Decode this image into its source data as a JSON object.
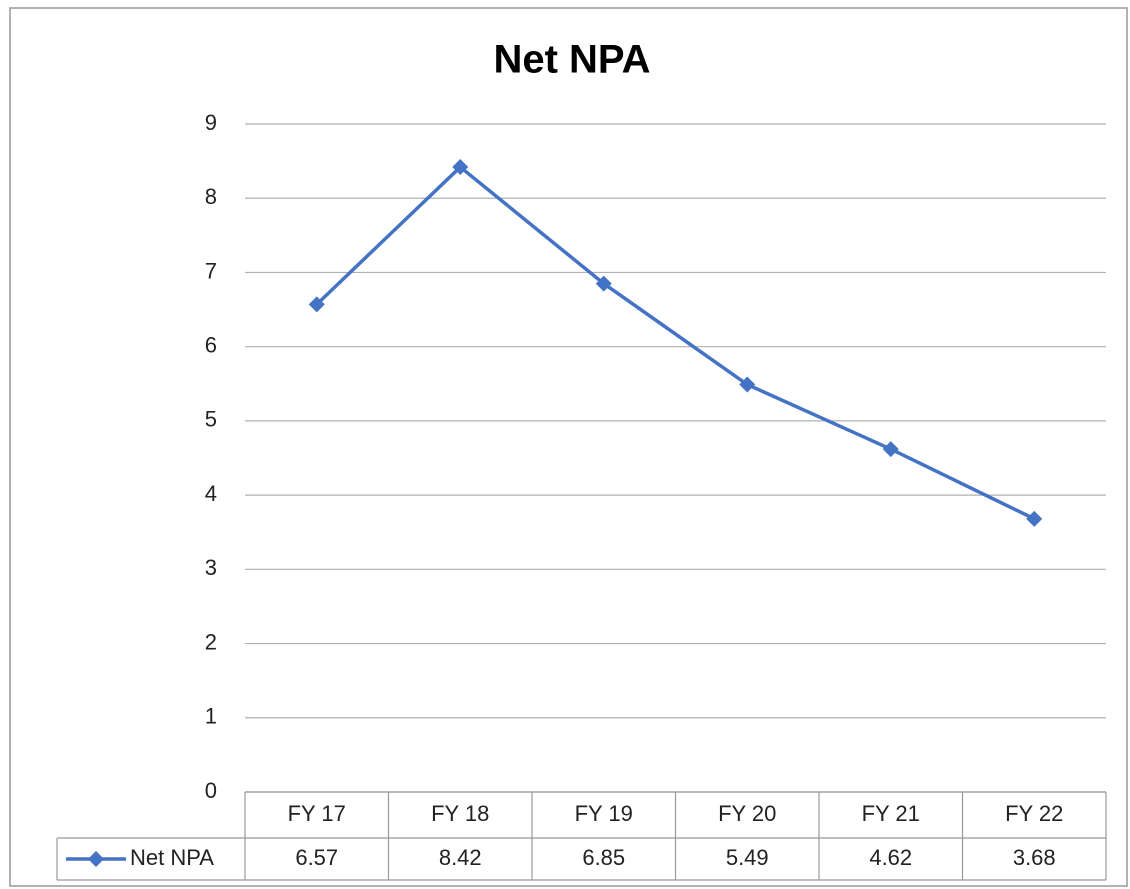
{
  "chart_data": {
    "type": "line",
    "title": "Net NPA",
    "categories": [
      "FY 17",
      "FY 18",
      "FY 19",
      "FY 20",
      "FY 21",
      "FY 22"
    ],
    "series": [
      {
        "name": "Net NPA",
        "color": "#4472c4",
        "values": [
          6.57,
          8.42,
          6.85,
          5.49,
          4.62,
          3.68
        ]
      }
    ],
    "ylim": [
      0,
      9
    ],
    "yticks": [
      0,
      1,
      2,
      3,
      4,
      5,
      6,
      7,
      8,
      9
    ],
    "grid": true,
    "data_table": true
  }
}
